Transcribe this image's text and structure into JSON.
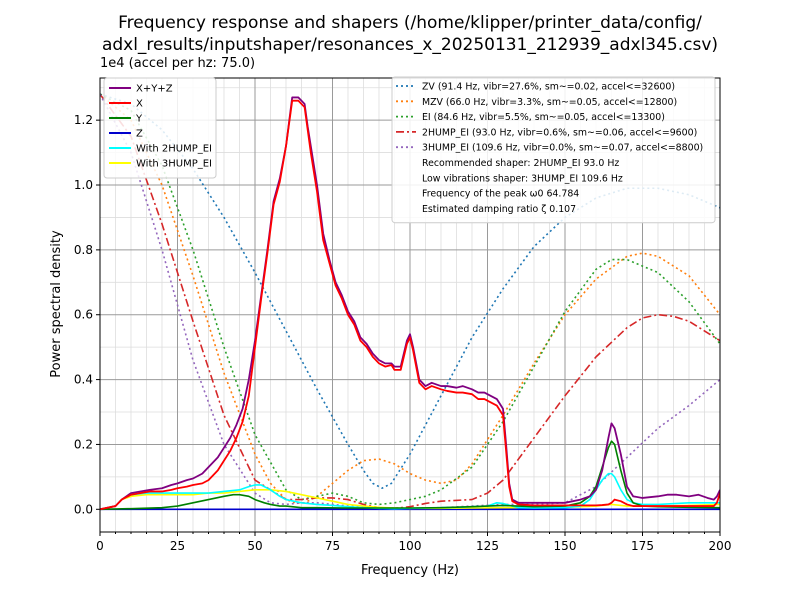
{
  "chart_data": {
    "type": "line",
    "title": "Frequency response and shapers (/home/klipper/printer_data/config/\nadxl_results/inputshaper/resonances_x_20250131_212939_adxl345.csv)",
    "xlabel": "Frequency (Hz)",
    "ylabel": "Power spectral density",
    "yoffset_label": "1e4 (accel per hz: 75.0)",
    "xlim": [
      0,
      200
    ],
    "ylim": [
      -0.07,
      1.33
    ],
    "xticks": [
      0,
      25,
      50,
      75,
      100,
      125,
      150,
      175,
      200
    ],
    "xtick_labels": [
      "0",
      "25",
      "50",
      "75",
      "100",
      "125",
      "150",
      "175",
      "200"
    ],
    "yticks": [
      0.0,
      0.2,
      0.4,
      0.6,
      0.8,
      1.0,
      1.2
    ],
    "ytick_labels": [
      "0.0",
      "0.2",
      "0.4",
      "0.6",
      "0.8",
      "1.0",
      "1.2"
    ],
    "grid": true,
    "minor_grid": true,
    "legend_left_position": "top-left",
    "legend_right_position": "top-right",
    "psd_series": [
      {
        "name": "X+Y+Z",
        "color": "#800080",
        "dash": "solid",
        "x": [
          0,
          5,
          7,
          10,
          13,
          16,
          20,
          23,
          25,
          28,
          30,
          33,
          35,
          38,
          40,
          42,
          44,
          46,
          48,
          50,
          52,
          54,
          56,
          58,
          60,
          62,
          64,
          66,
          67,
          68,
          70,
          72,
          74,
          76,
          78,
          80,
          82,
          84,
          86,
          88,
          90,
          92,
          94,
          95,
          97,
          99,
          100,
          101,
          103,
          105,
          107,
          110,
          112,
          115,
          117,
          120,
          122,
          124,
          126,
          128,
          130,
          131,
          132,
          133,
          135,
          140,
          145,
          150,
          155,
          158,
          160,
          162,
          164,
          165,
          166,
          168,
          170,
          172,
          175,
          180,
          183,
          186,
          190,
          193,
          196,
          198,
          199,
          200
        ],
        "y": [
          0.0,
          0.01,
          0.03,
          0.05,
          0.055,
          0.06,
          0.065,
          0.075,
          0.08,
          0.09,
          0.095,
          0.11,
          0.13,
          0.16,
          0.19,
          0.22,
          0.26,
          0.31,
          0.4,
          0.52,
          0.66,
          0.8,
          0.95,
          1.02,
          1.12,
          1.27,
          1.27,
          1.25,
          1.18,
          1.12,
          1.0,
          0.85,
          0.77,
          0.7,
          0.66,
          0.61,
          0.58,
          0.53,
          0.51,
          0.48,
          0.46,
          0.45,
          0.45,
          0.44,
          0.44,
          0.52,
          0.54,
          0.5,
          0.4,
          0.38,
          0.39,
          0.38,
          0.38,
          0.375,
          0.38,
          0.37,
          0.36,
          0.36,
          0.35,
          0.34,
          0.31,
          0.2,
          0.08,
          0.03,
          0.02,
          0.02,
          0.02,
          0.02,
          0.03,
          0.04,
          0.06,
          0.12,
          0.22,
          0.265,
          0.25,
          0.17,
          0.07,
          0.04,
          0.035,
          0.04,
          0.045,
          0.045,
          0.04,
          0.045,
          0.035,
          0.03,
          0.04,
          0.06
        ]
      },
      {
        "name": "X",
        "color": "#ff0000",
        "dash": "solid",
        "x": [
          0,
          5,
          7,
          10,
          13,
          16,
          20,
          23,
          25,
          28,
          30,
          33,
          35,
          38,
          40,
          42,
          44,
          46,
          48,
          50,
          52,
          54,
          56,
          58,
          60,
          62,
          64,
          66,
          67,
          68,
          70,
          72,
          74,
          76,
          78,
          80,
          82,
          84,
          86,
          88,
          90,
          92,
          94,
          95,
          97,
          99,
          100,
          101,
          103,
          105,
          107,
          110,
          112,
          115,
          117,
          120,
          122,
          124,
          126,
          128,
          130,
          131,
          132,
          133,
          135,
          140,
          145,
          150,
          155,
          158,
          160,
          162,
          164,
          165,
          166,
          168,
          170,
          172,
          175,
          180,
          183,
          186,
          190,
          193,
          196,
          198,
          199,
          200
        ],
        "y": [
          0.0,
          0.01,
          0.03,
          0.045,
          0.05,
          0.055,
          0.055,
          0.06,
          0.065,
          0.07,
          0.075,
          0.08,
          0.09,
          0.12,
          0.15,
          0.18,
          0.22,
          0.27,
          0.35,
          0.5,
          0.65,
          0.79,
          0.94,
          1.01,
          1.12,
          1.26,
          1.26,
          1.24,
          1.17,
          1.1,
          0.98,
          0.83,
          0.76,
          0.69,
          0.65,
          0.6,
          0.57,
          0.52,
          0.5,
          0.47,
          0.45,
          0.44,
          0.445,
          0.43,
          0.43,
          0.51,
          0.53,
          0.49,
          0.39,
          0.37,
          0.38,
          0.37,
          0.365,
          0.36,
          0.36,
          0.355,
          0.34,
          0.34,
          0.33,
          0.32,
          0.29,
          0.18,
          0.07,
          0.025,
          0.015,
          0.012,
          0.012,
          0.012,
          0.012,
          0.012,
          0.012,
          0.013,
          0.015,
          0.02,
          0.03,
          0.025,
          0.015,
          0.01,
          0.01,
          0.01,
          0.01,
          0.01,
          0.01,
          0.01,
          0.01,
          0.01,
          0.02,
          0.05
        ]
      },
      {
        "name": "Y",
        "color": "#008000",
        "dash": "solid",
        "x": [
          0,
          10,
          20,
          25,
          30,
          35,
          40,
          43,
          45,
          48,
          50,
          53,
          55,
          58,
          60,
          65,
          70,
          80,
          90,
          100,
          110,
          120,
          125,
          130,
          135,
          140,
          150,
          155,
          158,
          160,
          162,
          164,
          165,
          166,
          168,
          170,
          172,
          175,
          180,
          190,
          200
        ],
        "y": [
          0.0,
          0.002,
          0.005,
          0.01,
          0.02,
          0.03,
          0.04,
          0.045,
          0.045,
          0.04,
          0.03,
          0.02,
          0.015,
          0.01,
          0.01,
          0.005,
          0.005,
          0.004,
          0.004,
          0.004,
          0.005,
          0.008,
          0.01,
          0.012,
          0.01,
          0.008,
          0.01,
          0.02,
          0.04,
          0.07,
          0.13,
          0.19,
          0.21,
          0.2,
          0.12,
          0.05,
          0.02,
          0.01,
          0.008,
          0.006,
          0.005
        ]
      },
      {
        "name": "Z",
        "color": "#0000cc",
        "dash": "solid",
        "x": [
          0,
          200
        ],
        "y": [
          0.0,
          0.0
        ]
      },
      {
        "name": "With 2HUMP_EI",
        "color": "#00ffff",
        "dash": "solid",
        "x": [
          0,
          5,
          7,
          10,
          15,
          20,
          25,
          30,
          35,
          40,
          45,
          48,
          50,
          52,
          55,
          58,
          60,
          65,
          70,
          75,
          80,
          85,
          90,
          95,
          100,
          105,
          110,
          115,
          120,
          125,
          128,
          130,
          133,
          135,
          140,
          150,
          155,
          158,
          160,
          162,
          164,
          165,
          166,
          168,
          170,
          172,
          175,
          180,
          190,
          200
        ],
        "y": [
          0.0,
          0.01,
          0.03,
          0.045,
          0.05,
          0.05,
          0.05,
          0.05,
          0.05,
          0.055,
          0.06,
          0.07,
          0.075,
          0.075,
          0.06,
          0.04,
          0.03,
          0.02,
          0.015,
          0.012,
          0.008,
          0.005,
          0.003,
          0.002,
          0.003,
          0.004,
          0.005,
          0.006,
          0.008,
          0.01,
          0.02,
          0.018,
          0.01,
          0.005,
          0.004,
          0.005,
          0.01,
          0.03,
          0.06,
          0.09,
          0.11,
          0.11,
          0.1,
          0.06,
          0.03,
          0.02,
          0.015,
          0.015,
          0.02,
          0.02
        ]
      },
      {
        "name": "With 3HUMP_EI",
        "color": "#ffff00",
        "dash": "solid",
        "x": [
          0,
          5,
          7,
          10,
          15,
          20,
          25,
          30,
          35,
          40,
          45,
          50,
          55,
          60,
          65,
          70,
          75,
          80,
          85,
          90,
          95,
          100,
          110,
          120,
          130,
          140,
          150,
          160,
          165,
          170,
          180,
          190,
          200
        ],
        "y": [
          0.0,
          0.01,
          0.03,
          0.04,
          0.045,
          0.045,
          0.045,
          0.045,
          0.05,
          0.05,
          0.055,
          0.06,
          0.06,
          0.055,
          0.045,
          0.035,
          0.025,
          0.015,
          0.01,
          0.006,
          0.004,
          0.003,
          0.003,
          0.004,
          0.005,
          0.005,
          0.006,
          0.01,
          0.015,
          0.01,
          0.01,
          0.012,
          0.015
        ]
      }
    ],
    "shaper_series": [
      {
        "name": "ZV (91.4 Hz, vibr=27.6%, sm~=0.02, accel<=32600)",
        "color": "#1f77b4",
        "dash": "dotted",
        "x": [
          0,
          10,
          20,
          30,
          40,
          50,
          60,
          70,
          80,
          85,
          88,
          91,
          94,
          100,
          110,
          120,
          130,
          140,
          150,
          160,
          170,
          180,
          190,
          200
        ],
        "y": [
          1.28,
          1.25,
          1.17,
          1.05,
          0.9,
          0.73,
          0.55,
          0.37,
          0.2,
          0.12,
          0.08,
          0.065,
          0.08,
          0.17,
          0.35,
          0.53,
          0.68,
          0.81,
          0.9,
          0.96,
          0.99,
          0.99,
          0.97,
          0.93
        ]
      },
      {
        "name": "MZV (66.0 Hz, vibr=3.3%, sm~=0.05, accel<=12800)",
        "color": "#ff7f0e",
        "dash": "dotted",
        "x": [
          0,
          10,
          20,
          30,
          40,
          50,
          55,
          60,
          63,
          66,
          70,
          75,
          80,
          85,
          90,
          95,
          100,
          105,
          110,
          115,
          120,
          130,
          140,
          150,
          160,
          170,
          175,
          180,
          190,
          200
        ],
        "y": [
          1.28,
          1.2,
          1.0,
          0.72,
          0.42,
          0.17,
          0.08,
          0.03,
          0.02,
          0.02,
          0.04,
          0.08,
          0.12,
          0.15,
          0.155,
          0.14,
          0.11,
          0.09,
          0.08,
          0.09,
          0.14,
          0.29,
          0.45,
          0.6,
          0.71,
          0.78,
          0.79,
          0.78,
          0.72,
          0.6
        ]
      },
      {
        "name": "EI (84.6 Hz, vibr=5.5%, sm~=0.05, accel<=13300)",
        "color": "#2ca02c",
        "dash": "dotted",
        "x": [
          0,
          10,
          20,
          30,
          40,
          50,
          60,
          65,
          70,
          75,
          80,
          85,
          90,
          95,
          100,
          105,
          110,
          120,
          130,
          140,
          150,
          160,
          165,
          170,
          180,
          190,
          200
        ],
        "y": [
          1.28,
          1.23,
          1.06,
          0.8,
          0.5,
          0.23,
          0.06,
          0.03,
          0.04,
          0.05,
          0.04,
          0.02,
          0.015,
          0.02,
          0.03,
          0.04,
          0.06,
          0.13,
          0.27,
          0.44,
          0.61,
          0.74,
          0.77,
          0.77,
          0.73,
          0.64,
          0.51
        ]
      },
      {
        "name": "2HUMP_EI (93.0 Hz, vibr=0.6%, sm~=0.06, accel<=9600)",
        "color": "#d62728",
        "dash": "dashdot",
        "x": [
          0,
          10,
          20,
          30,
          40,
          50,
          60,
          65,
          70,
          75,
          80,
          85,
          90,
          95,
          100,
          105,
          110,
          120,
          125,
          130,
          140,
          150,
          160,
          170,
          175,
          180,
          185,
          190,
          200
        ],
        "y": [
          1.28,
          1.15,
          0.88,
          0.58,
          0.29,
          0.09,
          0.03,
          0.03,
          0.035,
          0.035,
          0.03,
          0.015,
          0.005,
          0.003,
          0.008,
          0.018,
          0.025,
          0.03,
          0.05,
          0.09,
          0.22,
          0.35,
          0.47,
          0.56,
          0.59,
          0.6,
          0.595,
          0.58,
          0.52
        ]
      },
      {
        "name": "3HUMP_EI (109.6 Hz, vibr=0.0%, sm~=0.07, accel<=8800)",
        "color": "#9467bd",
        "dash": "dotted",
        "x": [
          0,
          10,
          20,
          30,
          40,
          50,
          55,
          60,
          65,
          70,
          80,
          90,
          100,
          110,
          120,
          130,
          140,
          150,
          160,
          170,
          180,
          190,
          200
        ],
        "y": [
          1.28,
          1.1,
          0.8,
          0.46,
          0.2,
          0.05,
          0.02,
          0.015,
          0.02,
          0.02,
          0.01,
          0.005,
          0.003,
          0.005,
          0.01,
          0.015,
          0.015,
          0.02,
          0.07,
          0.16,
          0.25,
          0.32,
          0.4
        ]
      }
    ],
    "info_lines": [
      "Recommended shaper: 2HUMP_EI 93.0 Hz",
      "Low vibrations shaper: 3HUMP_EI 109.6 Hz",
      "Frequency of the peak ω0 64.784",
      "Estimated damping ratio ζ 0.107"
    ]
  }
}
